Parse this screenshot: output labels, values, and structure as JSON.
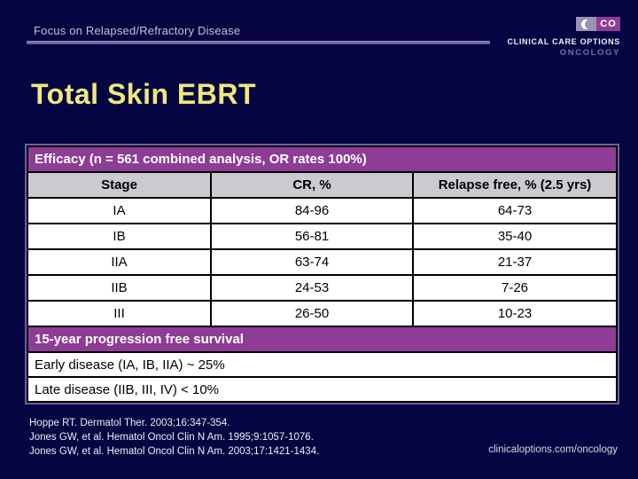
{
  "header": {
    "eyebrow": "Focus on Relapsed/Refractory Disease",
    "title": "Total Skin EBRT"
  },
  "logo": {
    "mark_text": "CO",
    "name": "CLINICAL CARE OPTIONS",
    "division": "ONCOLOGY"
  },
  "table": {
    "section_header": "Efficacy (n = 561 combined analysis, OR rates 100%)",
    "columns": [
      "Stage",
      "CR, %",
      "Relapse free, % (2.5 yrs)"
    ],
    "rows": [
      {
        "stage": "IA",
        "cr": "84-96",
        "relapse_free": "64-73"
      },
      {
        "stage": "IB",
        "cr": "56-81",
        "relapse_free": "35-40"
      },
      {
        "stage": "IIA",
        "cr": "63-74",
        "relapse_free": "21-37"
      },
      {
        "stage": "IIB",
        "cr": "24-53",
        "relapse_free": "7-26"
      },
      {
        "stage": "III",
        "cr": "26-50",
        "relapse_free": "10-23"
      }
    ],
    "survival_header": "15-year progression free survival",
    "survival_rows": [
      "Early disease (IA, IB, IIA) ~ 25%",
      "Late disease (IIB, III, IV) < 10%"
    ]
  },
  "references": [
    "Hoppe RT. Dermatol Ther. 2003;16:347-354.",
    "Jones GW, et al. Hematol Oncol Clin N Am. 1995;9:1057-1076.",
    "Jones GW, et al. Hematol Oncol Clin N Am. 2003;17:1421-1434."
  ],
  "footer": {
    "site": "clinicaloptions.com/oncology"
  },
  "colors": {
    "background": "#050542",
    "accent_purple": "#8E3D96",
    "title_yellow": "#F0E87D",
    "header_gray": "#CBCBCF",
    "rule_purple": "#7A68A8"
  }
}
